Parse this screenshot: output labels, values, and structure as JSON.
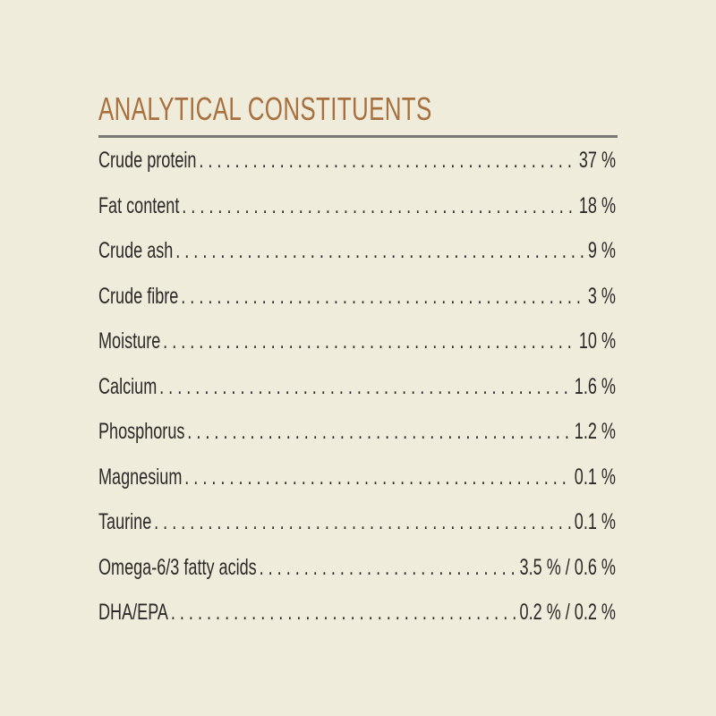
{
  "title": "ANALYTICAL CONSTITUENTS",
  "colors": {
    "background": "#f0ecdc",
    "title": "#a8703e",
    "rule": "#7a7874",
    "text": "#2b2a28"
  },
  "constituents": [
    {
      "label": "Crude protein",
      "value": "37 %"
    },
    {
      "label": "Fat content",
      "value": "18 %"
    },
    {
      "label": "Crude ash",
      "value": "9 %"
    },
    {
      "label": "Crude fibre",
      "value": "3 %"
    },
    {
      "label": "Moisture",
      "value": "10 %"
    },
    {
      "label": "Calcium",
      "value": "1.6 %"
    },
    {
      "label": "Phosphorus",
      "value": "1.2 %"
    },
    {
      "label": "Magnesium",
      "value": "0.1 %"
    },
    {
      "label": "Taurine",
      "value": "0.1 %"
    },
    {
      "label": "Omega-6/3 fatty acids",
      "value": "3.5 % / 0.6 %"
    },
    {
      "label": "DHA/EPA",
      "value": "0.2 % / 0.2 %"
    }
  ]
}
